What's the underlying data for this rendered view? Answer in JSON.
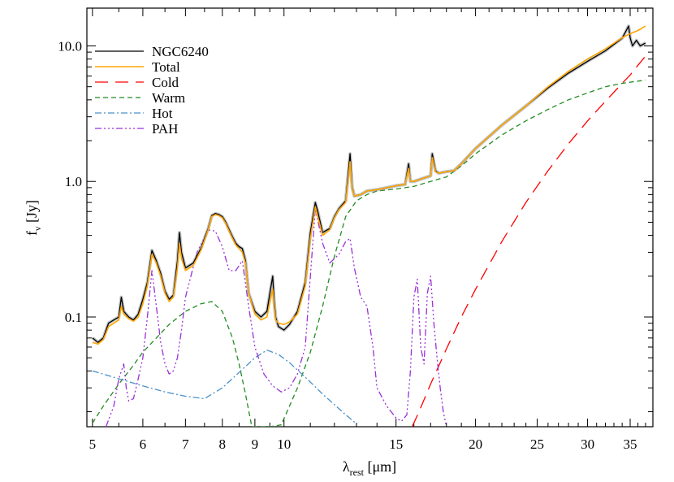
{
  "chart_data": {
    "type": "line",
    "xscale": "log",
    "yscale": "log",
    "xlim": [
      4.9,
      38
    ],
    "ylim": [
      0.0155,
      19
    ],
    "xticks": [
      5,
      6,
      7,
      8,
      9,
      10,
      15,
      20,
      25,
      30,
      35
    ],
    "xtick_labels": [
      "5",
      "6",
      "7",
      "8",
      "9",
      "10",
      "15",
      "20",
      "25",
      "30",
      "35"
    ],
    "yticks": [
      0.1,
      1.0,
      10.0
    ],
    "ytick_labels": [
      "0.1",
      "1.0",
      "10.0"
    ],
    "xlabel": {
      "main": "λ",
      "sub": "rest",
      "unit": "[μm]"
    },
    "ylabel": {
      "main": "f",
      "sub": "ν",
      "unit": "[Jy]"
    },
    "legend_position": "top-left",
    "series": [
      {
        "name": "NGC6240",
        "color": "#000000",
        "dash": "",
        "width": 1.3,
        "x": [
          5.0,
          5.1,
          5.2,
          5.3,
          5.4,
          5.5,
          5.55,
          5.6,
          5.7,
          5.8,
          5.9,
          6.0,
          6.1,
          6.2,
          6.3,
          6.4,
          6.5,
          6.6,
          6.7,
          6.8,
          6.85,
          6.9,
          7.0,
          7.2,
          7.4,
          7.6,
          7.7,
          7.8,
          7.9,
          8.0,
          8.1,
          8.2,
          8.3,
          8.4,
          8.5,
          8.6,
          8.7,
          8.8,
          9.0,
          9.2,
          9.4,
          9.6,
          9.65,
          9.7,
          9.8,
          10.0,
          10.2,
          10.5,
          10.8,
          11.0,
          11.2,
          11.3,
          11.5,
          11.8,
          12.0,
          12.2,
          12.5,
          12.7,
          12.8,
          12.9,
          13.2,
          13.5,
          14.0,
          14.5,
          15.0,
          15.5,
          15.7,
          15.8,
          16.0,
          16.5,
          17.0,
          17.1,
          17.3,
          17.5,
          18.0,
          18.5,
          19.0,
          20.0,
          22.0,
          24.0,
          26.0,
          28.0,
          30.0,
          32.0,
          34.0,
          34.8,
          35.0,
          35.3,
          35.8,
          36.3,
          37.0
        ],
        "y": [
          0.07,
          0.065,
          0.07,
          0.09,
          0.095,
          0.1,
          0.14,
          0.11,
          0.1,
          0.095,
          0.105,
          0.135,
          0.18,
          0.31,
          0.26,
          0.21,
          0.155,
          0.135,
          0.145,
          0.26,
          0.42,
          0.3,
          0.23,
          0.25,
          0.32,
          0.45,
          0.56,
          0.58,
          0.57,
          0.55,
          0.5,
          0.44,
          0.39,
          0.35,
          0.33,
          0.32,
          0.26,
          0.15,
          0.11,
          0.1,
          0.11,
          0.2,
          0.13,
          0.1,
          0.085,
          0.08,
          0.088,
          0.11,
          0.18,
          0.42,
          0.7,
          0.6,
          0.42,
          0.45,
          0.55,
          0.63,
          0.72,
          1.6,
          0.9,
          0.78,
          0.8,
          0.85,
          0.87,
          0.9,
          0.93,
          0.95,
          1.35,
          1.0,
          1.0,
          1.05,
          1.1,
          1.6,
          1.2,
          1.15,
          1.18,
          1.2,
          1.35,
          1.75,
          2.6,
          3.6,
          4.9,
          6.3,
          7.7,
          9.2,
          11.4,
          14.0,
          11.5,
          10.0,
          11.0,
          10.0,
          10.5
        ]
      },
      {
        "name": "Total",
        "color": "#FFA500",
        "dash": "",
        "width": 1.6,
        "x": [
          5.0,
          5.1,
          5.2,
          5.3,
          5.4,
          5.5,
          5.55,
          5.6,
          5.7,
          5.8,
          5.9,
          6.0,
          6.1,
          6.2,
          6.3,
          6.4,
          6.5,
          6.6,
          6.7,
          6.8,
          6.85,
          6.9,
          7.0,
          7.2,
          7.4,
          7.6,
          7.7,
          7.8,
          7.9,
          8.0,
          8.1,
          8.2,
          8.3,
          8.4,
          8.5,
          8.6,
          8.7,
          8.8,
          9.0,
          9.2,
          9.4,
          9.6,
          9.65,
          9.7,
          9.8,
          10.0,
          10.2,
          10.5,
          10.8,
          11.0,
          11.2,
          11.3,
          11.5,
          11.8,
          12.0,
          12.2,
          12.5,
          12.7,
          12.8,
          12.9,
          13.2,
          13.5,
          14.0,
          14.5,
          15.0,
          15.5,
          15.7,
          15.8,
          16.0,
          16.5,
          17.0,
          17.1,
          17.3,
          17.5,
          18.0,
          18.5,
          19.0,
          20.0,
          22.0,
          24.0,
          26.0,
          28.0,
          30.0,
          32.0,
          34.0,
          35.0,
          36.0,
          37.0
        ],
        "y": [
          0.065,
          0.063,
          0.068,
          0.085,
          0.09,
          0.095,
          0.12,
          0.105,
          0.097,
          0.093,
          0.1,
          0.125,
          0.17,
          0.29,
          0.25,
          0.2,
          0.15,
          0.13,
          0.14,
          0.23,
          0.35,
          0.27,
          0.22,
          0.24,
          0.31,
          0.44,
          0.55,
          0.57,
          0.56,
          0.54,
          0.49,
          0.43,
          0.38,
          0.34,
          0.32,
          0.3,
          0.25,
          0.15,
          0.105,
          0.095,
          0.1,
          0.16,
          0.12,
          0.095,
          0.09,
          0.088,
          0.092,
          0.105,
          0.17,
          0.38,
          0.65,
          0.55,
          0.4,
          0.44,
          0.54,
          0.62,
          0.7,
          1.4,
          0.88,
          0.78,
          0.8,
          0.85,
          0.87,
          0.9,
          0.93,
          0.95,
          1.25,
          1.0,
          1.0,
          1.05,
          1.1,
          1.5,
          1.18,
          1.15,
          1.18,
          1.2,
          1.35,
          1.75,
          2.6,
          3.6,
          5.0,
          6.5,
          8.0,
          9.5,
          11.5,
          12.3,
          13.0,
          14.0
        ]
      },
      {
        "name": "Cold",
        "color": "#FF0000",
        "dash": "16 9",
        "width": 1.3,
        "x": [
          15.9,
          16.3,
          17.0,
          18.0,
          19.0,
          20.0,
          22.0,
          24.0,
          26.0,
          28.0,
          30.0,
          32.0,
          34.0,
          35.0,
          36.0,
          37.0
        ],
        "y": [
          0.0155,
          0.02,
          0.032,
          0.058,
          0.1,
          0.16,
          0.36,
          0.7,
          1.2,
          1.9,
          2.8,
          3.9,
          5.3,
          6.1,
          7.2,
          8.4
        ]
      },
      {
        "name": "Warm",
        "color": "#228B22",
        "dash": "6 4",
        "width": 1.3,
        "x": [
          5.0,
          5.2,
          5.5,
          5.8,
          6.0,
          6.3,
          6.6,
          7.0,
          7.4,
          7.7,
          8.0,
          8.3,
          8.5,
          8.7,
          8.9,
          9.5,
          9.9,
          10.2,
          10.5,
          11.0,
          11.5,
          12.0,
          12.5,
          13.0,
          13.5,
          14.0,
          15.0,
          16.0,
          17.0,
          18.0,
          19.0,
          20.0,
          22.0,
          24.0,
          26.0,
          28.0,
          30.0,
          32.0,
          34.0,
          36.0,
          37.0
        ],
        "y": [
          0.0165,
          0.022,
          0.032,
          0.044,
          0.055,
          0.07,
          0.088,
          0.11,
          0.125,
          0.13,
          0.11,
          0.07,
          0.045,
          0.027,
          0.0155,
          0.0155,
          0.016,
          0.022,
          0.03,
          0.055,
          0.12,
          0.28,
          0.55,
          0.72,
          0.8,
          0.85,
          0.88,
          0.92,
          1.0,
          1.08,
          1.3,
          1.6,
          2.2,
          2.8,
          3.4,
          4.0,
          4.5,
          5.0,
          5.3,
          5.5,
          5.6
        ]
      },
      {
        "name": "Hot",
        "color": "#4A90C8",
        "dash": "8 3 2 3",
        "width": 1.3,
        "x": [
          5.0,
          5.5,
          6.0,
          6.5,
          7.0,
          7.5,
          8.0,
          8.5,
          9.0,
          9.4,
          9.8,
          10.2,
          10.8,
          11.5,
          12.5,
          13.0
        ],
        "y": [
          0.04,
          0.035,
          0.031,
          0.028,
          0.026,
          0.025,
          0.03,
          0.039,
          0.05,
          0.057,
          0.053,
          0.046,
          0.036,
          0.027,
          0.019,
          0.0163
        ]
      },
      {
        "name": "PAH",
        "color": "#9B30D8",
        "dash": "8 3 2 3 2 3 2 3",
        "width": 1.3,
        "x": [
          5.25,
          5.4,
          5.5,
          5.6,
          5.65,
          5.7,
          5.8,
          5.9,
          6.0,
          6.1,
          6.2,
          6.3,
          6.4,
          6.5,
          6.6,
          6.7,
          6.8,
          6.9,
          7.0,
          7.3,
          7.6,
          7.8,
          8.0,
          8.2,
          8.4,
          8.6,
          8.8,
          9.0,
          9.3,
          9.6,
          9.9,
          10.2,
          10.5,
          10.8,
          11.0,
          11.2,
          11.5,
          11.8,
          12.2,
          12.5,
          12.7,
          12.9,
          13.2,
          13.5,
          13.8,
          14.0,
          14.5,
          15.0,
          15.3,
          15.6,
          15.8,
          16.0,
          16.2,
          16.4,
          16.6,
          16.8,
          17.0,
          17.2,
          17.4,
          17.6,
          17.8,
          18.0
        ],
        "y": [
          0.0155,
          0.022,
          0.035,
          0.045,
          0.03,
          0.024,
          0.025,
          0.035,
          0.05,
          0.1,
          0.22,
          0.12,
          0.065,
          0.045,
          0.038,
          0.04,
          0.05,
          0.08,
          0.14,
          0.3,
          0.44,
          0.43,
          0.33,
          0.22,
          0.22,
          0.26,
          0.12,
          0.06,
          0.038,
          0.031,
          0.028,
          0.03,
          0.038,
          0.06,
          0.2,
          0.63,
          0.35,
          0.25,
          0.29,
          0.36,
          0.38,
          0.23,
          0.14,
          0.12,
          0.06,
          0.03,
          0.022,
          0.018,
          0.017,
          0.019,
          0.04,
          0.14,
          0.19,
          0.06,
          0.045,
          0.15,
          0.2,
          0.09,
          0.05,
          0.03,
          0.02,
          0.0155
        ]
      }
    ]
  }
}
